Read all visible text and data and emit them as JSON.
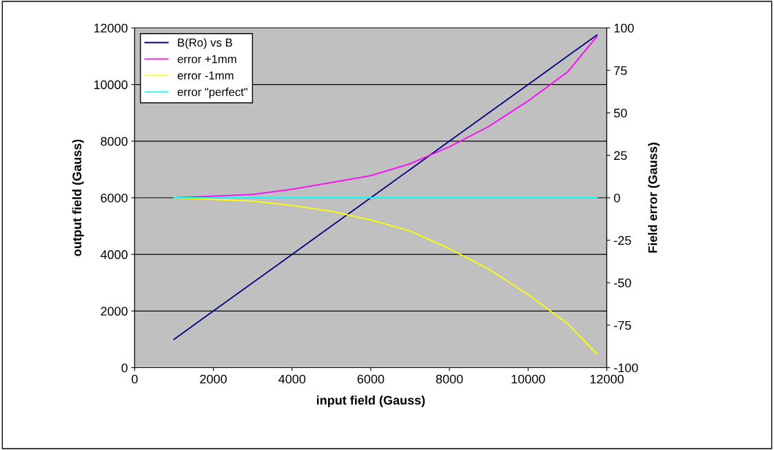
{
  "chart_data": {
    "type": "line",
    "xlabel": "input field (Gauss)",
    "ylabel": "output field (Gauss)",
    "y2label": "Field error (Gauss)",
    "xlim": [
      0,
      12000
    ],
    "xticks": [
      0,
      2000,
      4000,
      6000,
      8000,
      10000,
      12000
    ],
    "ylim": [
      0,
      12000
    ],
    "yticks": [
      0,
      2000,
      4000,
      6000,
      8000,
      10000,
      12000
    ],
    "y2lim": [
      -100,
      100
    ],
    "y2ticks": [
      -100,
      -75,
      -50,
      -25,
      0,
      25,
      50,
      75,
      100
    ],
    "grid": "y",
    "legend": "top left",
    "marker": "none",
    "line_style": "solid",
    "series": [
      {
        "name": "B(Ro) vs B",
        "color": "#000080",
        "x": [
          1000,
          2000,
          3000,
          4000,
          5000,
          6000,
          7000,
          8000,
          9000,
          10000,
          11000,
          11750
        ],
        "values": [
          1000,
          2000,
          3000,
          4000,
          5000,
          6000,
          7000,
          8000,
          9000,
          10000,
          11000,
          11750
        ]
      },
      {
        "name": "error +1mm",
        "color": "#ff00ff",
        "axis": "y2",
        "x": [
          1000,
          2000,
          3000,
          4000,
          5000,
          6000,
          7000,
          8000,
          9000,
          10000,
          11000,
          11750
        ],
        "values": [
          0,
          1,
          2,
          5,
          9,
          13,
          20,
          30,
          42,
          57,
          74,
          95
        ]
      },
      {
        "name": "error -1mm",
        "color": "#ffff00",
        "axis": "y2",
        "x": [
          1000,
          2000,
          3000,
          4000,
          5000,
          6000,
          7000,
          8000,
          9000,
          10000,
          11000,
          11750
        ],
        "values": [
          0,
          -1,
          -2,
          -4.5,
          -8,
          -13,
          -19.5,
          -30,
          -42,
          -57,
          -74,
          -92
        ]
      },
      {
        "name": "error \"perfect\"",
        "color": "#00ffff",
        "axis": "y2",
        "x": [
          1000,
          11750
        ],
        "values": [
          0,
          0
        ]
      }
    ]
  }
}
